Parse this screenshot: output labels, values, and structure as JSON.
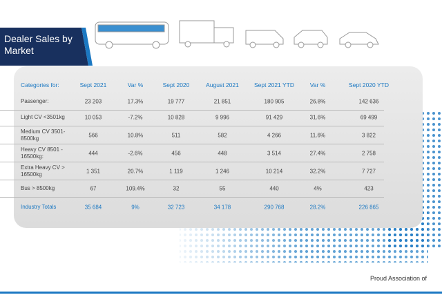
{
  "header": {
    "title": "Dealer Sales by Market"
  },
  "table": {
    "columns": [
      "Categories for:",
      "Sept 2021",
      "Var %",
      "Sept 2020",
      "August 2021",
      "Sept 2021 YTD",
      "Var %",
      "Sept 2020 YTD"
    ],
    "rows": [
      [
        "Passenger:",
        "23 203",
        "17.3%",
        "19 777",
        "21 851",
        "180 905",
        "26.8%",
        "142 636"
      ],
      [
        "Light CV <3501kg",
        "10 053",
        "-7.2%",
        "10 828",
        "9 996",
        "91 429",
        "31.6%",
        "69 499"
      ],
      [
        "Medium CV 3501-8500kg",
        "566",
        "10.8%",
        "511",
        "582",
        "4 266",
        "11.6%",
        "3 822"
      ],
      [
        "Heavy CV 8501 - 16500kg:",
        "444",
        "-2.6%",
        "456",
        "448",
        "3 514",
        "27.4%",
        "2 758"
      ],
      [
        "Extra Heavy CV > 16500kg",
        "1 351",
        "20.7%",
        "1 119",
        "1 246",
        "10 214",
        "32.2%",
        "7 727"
      ],
      [
        "Bus > 8500kg",
        "67",
        "109.4%",
        "32",
        "55",
        "440",
        "4%",
        "423"
      ]
    ],
    "totals": [
      "Industry Totals",
      "35 684",
      "9%",
      "32 723",
      "34 178",
      "290 768",
      "28.2%",
      "226 865"
    ]
  },
  "footer": {
    "text": "Proud Association of"
  }
}
